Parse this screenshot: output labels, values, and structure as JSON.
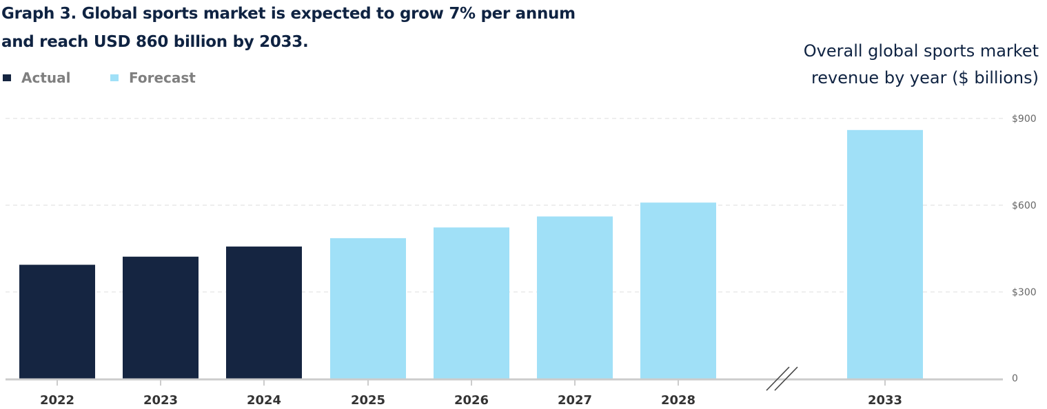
{
  "title": {
    "line1": "Graph 3. Global sports market is expected to grow 7% per annum",
    "line2": "and reach USD 860 billion by 2033."
  },
  "subtitle": {
    "line1": "Overall  global  sports  market",
    "line2": "revenue by year ($ billions)"
  },
  "legend": [
    {
      "label": "Actual",
      "color": "#152541"
    },
    {
      "label": "Forecast",
      "color": "#a0e0f7"
    }
  ],
  "colors": {
    "actual": "#152541",
    "forecast": "#a0e0f7",
    "gridline": "#dddddd",
    "baseline": "#cccccc",
    "tick_label": "#666666",
    "category_label": "#333333"
  },
  "chart_data": {
    "type": "bar",
    "categories": [
      "2022",
      "2023",
      "2024",
      "2025",
      "2026",
      "2027",
      "2028",
      "2033"
    ],
    "series": [
      {
        "name": "Actual",
        "values": [
          394,
          422,
          457,
          null,
          null,
          null,
          null,
          null
        ]
      },
      {
        "name": "Forecast",
        "values": [
          null,
          null,
          null,
          486,
          523,
          561,
          609,
          860
        ]
      }
    ],
    "ylim": [
      0,
      900
    ],
    "yticks": [
      0,
      300,
      600,
      900
    ],
    "ytick_labels": [
      "0",
      "$300",
      "$600",
      "$900"
    ],
    "y_axis_side": "right",
    "grid": true,
    "axis_break_between": [
      "2028",
      "2033"
    ],
    "legend_position": "top-left"
  }
}
